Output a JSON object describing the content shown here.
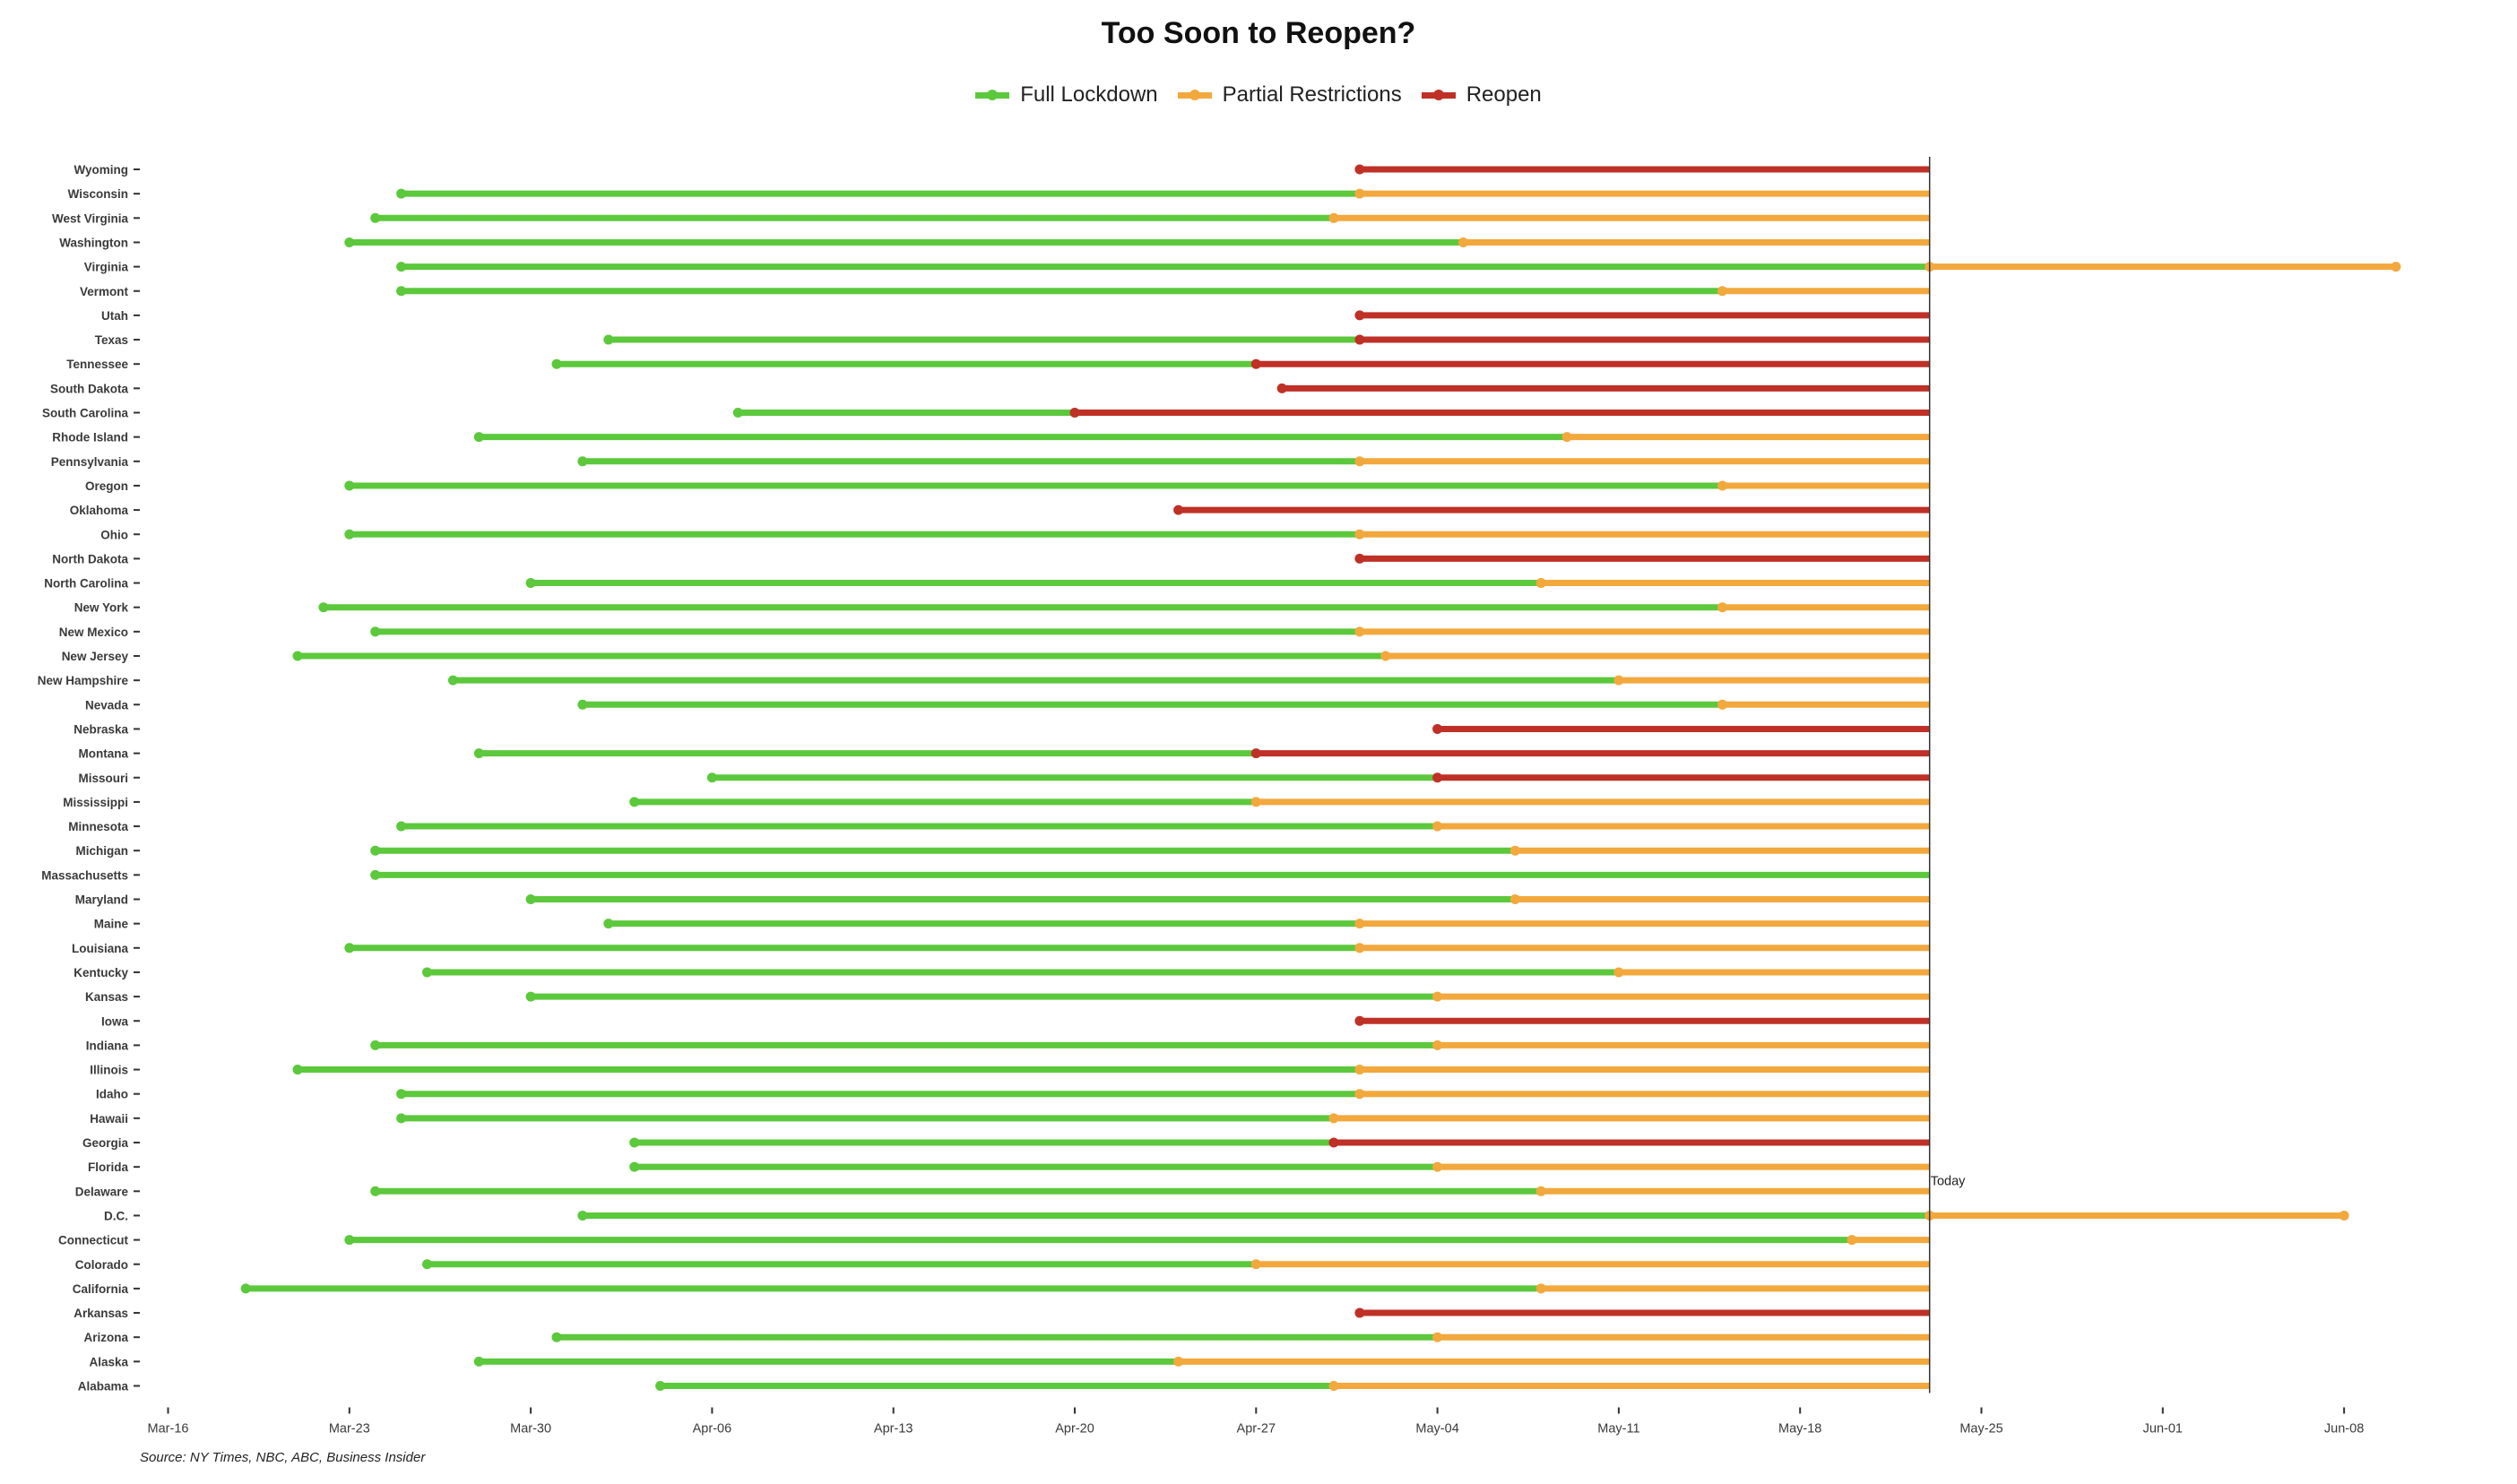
{
  "chart_data": {
    "type": "line",
    "title": "Too Soon to Reopen?",
    "source": "Source: NY Times, NBC, ABC, Business Insider",
    "today_label": "Today",
    "today": "2020-05-23",
    "x_ticks": [
      {
        "date": "2020-03-16",
        "label": "Mar-16"
      },
      {
        "date": "2020-03-23",
        "label": "Mar-23"
      },
      {
        "date": "2020-03-30",
        "label": "Mar-30"
      },
      {
        "date": "2020-04-06",
        "label": "Apr-06"
      },
      {
        "date": "2020-04-13",
        "label": "Apr-13"
      },
      {
        "date": "2020-04-20",
        "label": "Apr-20"
      },
      {
        "date": "2020-04-27",
        "label": "Apr-27"
      },
      {
        "date": "2020-05-04",
        "label": "May-04"
      },
      {
        "date": "2020-05-11",
        "label": "May-11"
      },
      {
        "date": "2020-05-18",
        "label": "May-18"
      },
      {
        "date": "2020-05-25",
        "label": "May-25"
      },
      {
        "date": "2020-06-01",
        "label": "Jun-01"
      },
      {
        "date": "2020-06-08",
        "label": "Jun-08"
      }
    ],
    "xlim": [
      "2020-03-15",
      "2020-06-11"
    ],
    "grid": false,
    "legend_position": "top",
    "series": [
      {
        "name": "Full Lockdown",
        "color": "#5cc83c"
      },
      {
        "name": "Partial Restrictions",
        "color": "#f2a83d"
      },
      {
        "name": "Reopen",
        "color": "#bf3026"
      }
    ],
    "states": [
      {
        "name": "Alabama",
        "lockdown": "2020-04-04",
        "partial": "2020-04-30",
        "reopen": null,
        "end": "2020-05-23"
      },
      {
        "name": "Alaska",
        "lockdown": "2020-03-28",
        "partial": "2020-04-24",
        "reopen": null,
        "end": "2020-05-23"
      },
      {
        "name": "Arizona",
        "lockdown": "2020-03-31",
        "partial": "2020-05-04",
        "reopen": null,
        "end": "2020-05-23"
      },
      {
        "name": "Arkansas",
        "lockdown": null,
        "partial": null,
        "reopen": "2020-05-01",
        "end": "2020-05-23"
      },
      {
        "name": "California",
        "lockdown": "2020-03-19",
        "partial": "2020-05-08",
        "reopen": null,
        "end": "2020-05-23"
      },
      {
        "name": "Colorado",
        "lockdown": "2020-03-26",
        "partial": "2020-04-27",
        "reopen": null,
        "end": "2020-05-23"
      },
      {
        "name": "Connecticut",
        "lockdown": "2020-03-23",
        "partial": "2020-05-20",
        "reopen": null,
        "end": "2020-05-23"
      },
      {
        "name": "D.C.",
        "lockdown": "2020-04-01",
        "partial": "2020-05-23",
        "reopen": null,
        "end": "2020-06-08"
      },
      {
        "name": "Delaware",
        "lockdown": "2020-03-24",
        "partial": "2020-05-08",
        "reopen": null,
        "end": "2020-05-23"
      },
      {
        "name": "Florida",
        "lockdown": "2020-04-03",
        "partial": "2020-05-04",
        "reopen": null,
        "end": "2020-05-23"
      },
      {
        "name": "Georgia",
        "lockdown": "2020-04-03",
        "partial": null,
        "reopen": "2020-04-30",
        "end": "2020-05-23"
      },
      {
        "name": "Hawaii",
        "lockdown": "2020-03-25",
        "partial": "2020-04-30",
        "reopen": null,
        "end": "2020-05-23"
      },
      {
        "name": "Idaho",
        "lockdown": "2020-03-25",
        "partial": "2020-05-01",
        "reopen": null,
        "end": "2020-05-23"
      },
      {
        "name": "Illinois",
        "lockdown": "2020-03-21",
        "partial": "2020-05-01",
        "reopen": null,
        "end": "2020-05-23"
      },
      {
        "name": "Indiana",
        "lockdown": "2020-03-24",
        "partial": "2020-05-04",
        "reopen": null,
        "end": "2020-05-23"
      },
      {
        "name": "Iowa",
        "lockdown": null,
        "partial": null,
        "reopen": "2020-05-01",
        "end": "2020-05-23"
      },
      {
        "name": "Kansas",
        "lockdown": "2020-03-30",
        "partial": "2020-05-04",
        "reopen": null,
        "end": "2020-05-23"
      },
      {
        "name": "Kentucky",
        "lockdown": "2020-03-26",
        "partial": "2020-05-11",
        "reopen": null,
        "end": "2020-05-23"
      },
      {
        "name": "Louisiana",
        "lockdown": "2020-03-23",
        "partial": "2020-05-01",
        "reopen": null,
        "end": "2020-05-23"
      },
      {
        "name": "Maine",
        "lockdown": "2020-04-02",
        "partial": "2020-05-01",
        "reopen": null,
        "end": "2020-05-23"
      },
      {
        "name": "Maryland",
        "lockdown": "2020-03-30",
        "partial": "2020-05-07",
        "reopen": null,
        "end": "2020-05-23"
      },
      {
        "name": "Massachusetts",
        "lockdown": "2020-03-24",
        "partial": null,
        "reopen": null,
        "end": "2020-05-23"
      },
      {
        "name": "Michigan",
        "lockdown": "2020-03-24",
        "partial": "2020-05-07",
        "reopen": null,
        "end": "2020-05-23"
      },
      {
        "name": "Minnesota",
        "lockdown": "2020-03-25",
        "partial": "2020-05-04",
        "reopen": null,
        "end": "2020-05-23"
      },
      {
        "name": "Mississippi",
        "lockdown": "2020-04-03",
        "partial": "2020-04-27",
        "reopen": null,
        "end": "2020-05-23"
      },
      {
        "name": "Missouri",
        "lockdown": "2020-04-06",
        "partial": null,
        "reopen": "2020-05-04",
        "end": "2020-05-23"
      },
      {
        "name": "Montana",
        "lockdown": "2020-03-28",
        "partial": null,
        "reopen": "2020-04-27",
        "end": "2020-05-23"
      },
      {
        "name": "Nebraska",
        "lockdown": null,
        "partial": null,
        "reopen": "2020-05-04",
        "end": "2020-05-23"
      },
      {
        "name": "Nevada",
        "lockdown": "2020-04-01",
        "partial": "2020-05-15",
        "reopen": null,
        "end": "2020-05-23"
      },
      {
        "name": "New Hampshire",
        "lockdown": "2020-03-27",
        "partial": "2020-05-11",
        "reopen": null,
        "end": "2020-05-23"
      },
      {
        "name": "New Jersey",
        "lockdown": "2020-03-21",
        "partial": "2020-05-02",
        "reopen": null,
        "end": "2020-05-23"
      },
      {
        "name": "New Mexico",
        "lockdown": "2020-03-24",
        "partial": "2020-05-01",
        "reopen": null,
        "end": "2020-05-23"
      },
      {
        "name": "New York",
        "lockdown": "2020-03-22",
        "partial": "2020-05-15",
        "reopen": null,
        "end": "2020-05-23"
      },
      {
        "name": "North Carolina",
        "lockdown": "2020-03-30",
        "partial": "2020-05-08",
        "reopen": null,
        "end": "2020-05-23"
      },
      {
        "name": "North Dakota",
        "lockdown": null,
        "partial": null,
        "reopen": "2020-05-01",
        "end": "2020-05-23"
      },
      {
        "name": "Ohio",
        "lockdown": "2020-03-23",
        "partial": "2020-05-01",
        "reopen": null,
        "end": "2020-05-23"
      },
      {
        "name": "Oklahoma",
        "lockdown": null,
        "partial": null,
        "reopen": "2020-04-24",
        "end": "2020-05-23"
      },
      {
        "name": "Oregon",
        "lockdown": "2020-03-23",
        "partial": "2020-05-15",
        "reopen": null,
        "end": "2020-05-23"
      },
      {
        "name": "Pennsylvania",
        "lockdown": "2020-04-01",
        "partial": "2020-05-01",
        "reopen": null,
        "end": "2020-05-23"
      },
      {
        "name": "Rhode Island",
        "lockdown": "2020-03-28",
        "partial": "2020-05-09",
        "reopen": null,
        "end": "2020-05-23"
      },
      {
        "name": "South Carolina",
        "lockdown": "2020-04-07",
        "partial": null,
        "reopen": "2020-04-20",
        "end": "2020-05-23"
      },
      {
        "name": "South Dakota",
        "lockdown": null,
        "partial": null,
        "reopen": "2020-04-28",
        "end": "2020-05-23"
      },
      {
        "name": "Tennessee",
        "lockdown": "2020-03-31",
        "partial": null,
        "reopen": "2020-04-27",
        "end": "2020-05-23"
      },
      {
        "name": "Texas",
        "lockdown": "2020-04-02",
        "partial": null,
        "reopen": "2020-05-01",
        "end": "2020-05-23"
      },
      {
        "name": "Utah",
        "lockdown": null,
        "partial": null,
        "reopen": "2020-05-01",
        "end": "2020-05-23"
      },
      {
        "name": "Vermont",
        "lockdown": "2020-03-25",
        "partial": "2020-05-15",
        "reopen": null,
        "end": "2020-05-23"
      },
      {
        "name": "Virginia",
        "lockdown": "2020-03-25",
        "partial": "2020-05-23",
        "reopen": null,
        "end": "2020-06-10"
      },
      {
        "name": "Washington",
        "lockdown": "2020-03-23",
        "partial": "2020-05-05",
        "reopen": null,
        "end": "2020-05-23"
      },
      {
        "name": "West Virginia",
        "lockdown": "2020-03-24",
        "partial": "2020-04-30",
        "reopen": null,
        "end": "2020-05-23"
      },
      {
        "name": "Wisconsin",
        "lockdown": "2020-03-25",
        "partial": "2020-05-01",
        "reopen": null,
        "end": "2020-05-23"
      },
      {
        "name": "Wyoming",
        "lockdown": null,
        "partial": null,
        "reopen": "2020-05-01",
        "end": "2020-05-23"
      }
    ]
  }
}
